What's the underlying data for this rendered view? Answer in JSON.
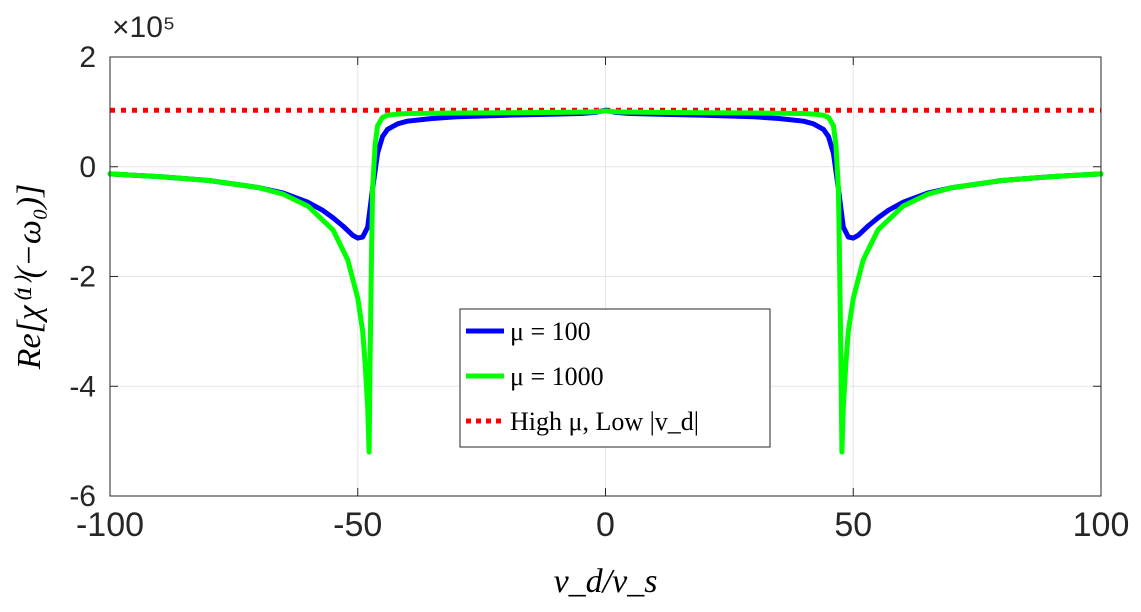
{
  "chart_data": {
    "type": "line",
    "exponent_label": "×10⁵",
    "xlabel": "v_d/v_s",
    "ylabel": "Re[χ⁽¹⁾(−ω₀)]",
    "xlim": [
      -100,
      100
    ],
    "ylim": [
      -6,
      2
    ],
    "x_ticks": [
      -100,
      -50,
      0,
      50,
      100
    ],
    "y_ticks": [
      -6,
      -4,
      -2,
      0,
      2
    ],
    "x_tick_labels": [
      "-100",
      "-50",
      "0",
      "50",
      "100"
    ],
    "y_tick_labels": [
      "-6",
      "-4",
      "-2",
      "0",
      "2"
    ],
    "grid": true,
    "legend_position": "bottom-center",
    "series": [
      {
        "name": "μ = 100",
        "color": "#0000ff",
        "style": "solid",
        "x": [
          -100,
          -90,
          -80,
          -70,
          -65,
          -60,
          -57,
          -55,
          -53,
          -51,
          -50,
          -49,
          -48,
          -47,
          -46,
          -45,
          -44,
          -42,
          -40,
          -35,
          -30,
          -20,
          -10,
          -5,
          -2,
          0,
          2,
          5,
          10,
          20,
          30,
          35,
          40,
          42,
          44,
          45,
          46,
          47,
          48,
          49,
          50,
          51,
          53,
          55,
          57,
          60,
          65,
          70,
          80,
          90,
          100
        ],
        "values": [
          -0.13,
          -0.18,
          -0.25,
          -0.38,
          -0.48,
          -0.65,
          -0.8,
          -0.93,
          -1.08,
          -1.25,
          -1.3,
          -1.28,
          -1.1,
          -0.4,
          0.25,
          0.55,
          0.68,
          0.78,
          0.83,
          0.88,
          0.91,
          0.94,
          0.96,
          0.97,
          0.99,
          1.03,
          0.99,
          0.97,
          0.96,
          0.94,
          0.91,
          0.88,
          0.83,
          0.78,
          0.68,
          0.55,
          0.25,
          -0.4,
          -1.1,
          -1.28,
          -1.3,
          -1.25,
          -1.08,
          -0.93,
          -0.8,
          -0.65,
          -0.48,
          -0.38,
          -0.25,
          -0.18,
          -0.13
        ]
      },
      {
        "name": "μ = 1000",
        "color": "#00ff00",
        "style": "solid",
        "x": [
          -100,
          -90,
          -80,
          -70,
          -65,
          -60,
          -55,
          -52,
          -50,
          -49,
          -48.5,
          -48,
          -47.7,
          -47.5,
          -47.2,
          -47,
          -46.5,
          -46,
          -45,
          -44,
          -42,
          -40,
          -35,
          -30,
          -20,
          -10,
          -5,
          -2,
          0,
          2,
          5,
          10,
          20,
          30,
          35,
          40,
          42,
          44,
          45,
          46,
          46.5,
          47,
          47.2,
          47.5,
          47.7,
          48,
          48.5,
          49,
          50,
          52,
          55,
          60,
          65,
          70,
          80,
          90,
          100
        ],
        "values": [
          -0.13,
          -0.18,
          -0.25,
          -0.38,
          -0.5,
          -0.72,
          -1.15,
          -1.7,
          -2.4,
          -3.0,
          -3.6,
          -4.4,
          -5.2,
          -3.5,
          -1.5,
          -0.4,
          0.4,
          0.75,
          0.9,
          0.94,
          0.96,
          0.97,
          0.975,
          0.98,
          0.985,
          0.99,
          0.995,
          1.0,
          1.02,
          1.0,
          0.995,
          0.99,
          0.985,
          0.98,
          0.975,
          0.97,
          0.96,
          0.94,
          0.9,
          0.75,
          0.4,
          -0.4,
          -1.5,
          -3.5,
          -5.2,
          -4.4,
          -3.6,
          -3.0,
          -2.4,
          -1.7,
          -1.15,
          -0.72,
          -0.5,
          -0.38,
          -0.25,
          -0.18,
          -0.13
        ]
      },
      {
        "name": "High μ, Low |v_d|",
        "color": "#ff0000",
        "style": "dotted",
        "x": [
          -100,
          100
        ],
        "values": [
          1.03,
          1.03
        ]
      }
    ]
  }
}
